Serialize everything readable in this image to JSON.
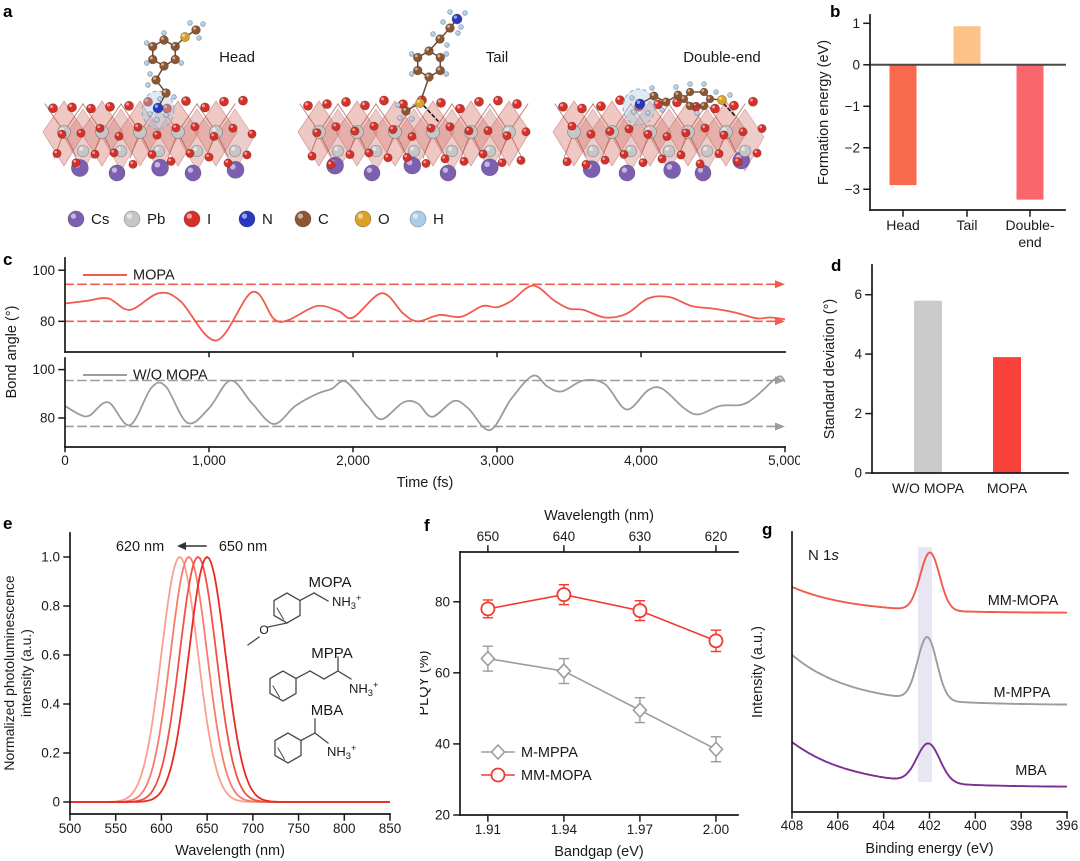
{
  "panels": {
    "a": {
      "letter": "a",
      "structures": [
        {
          "title": "Head"
        },
        {
          "title": "Tail"
        },
        {
          "title": "Double-end"
        }
      ],
      "atom_legend": [
        {
          "symbol": "Cs",
          "color": "#7d5fb2"
        },
        {
          "symbol": "Pb",
          "color": "#c6c6c6"
        },
        {
          "symbol": "I",
          "color": "#d63028"
        },
        {
          "symbol": "N",
          "color": "#2438c0"
        },
        {
          "symbol": "C",
          "color": "#8a5731"
        },
        {
          "symbol": "O",
          "color": "#d9a125"
        },
        {
          "symbol": "H",
          "color": "#a9cde6"
        }
      ]
    },
    "b": {
      "letter": "b"
    },
    "c": {
      "letter": "c"
    },
    "d": {
      "letter": "d"
    },
    "e": {
      "letter": "e"
    },
    "f": {
      "letter": "f"
    },
    "g": {
      "letter": "g"
    }
  },
  "chart_data": [
    {
      "panel": "b",
      "type": "bar",
      "title": "",
      "categories": [
        "Head",
        "Tail",
        "Double-end"
      ],
      "category_display": [
        [
          "Head"
        ],
        [
          "Tail"
        ],
        [
          "Double-",
          "end"
        ]
      ],
      "values": [
        -2.9,
        0.93,
        -3.25
      ],
      "bar_colors": [
        "#f9694c",
        "#fcc288",
        "#f9676c"
      ],
      "ylabel": "Formation energy (eV)",
      "ylim": [
        -3.5,
        1.2
      ],
      "yticks": [
        1,
        0,
        -1,
        -2,
        -3
      ],
      "ytick_labels": [
        "1",
        "0",
        "−1",
        "−2",
        "−3"
      ],
      "zero_line": true,
      "grid": false
    },
    {
      "panel": "c",
      "type": "line",
      "xlabel": "Time (fs)",
      "ylabel": "Bond angle (°)",
      "xlim": [
        0,
        5000
      ],
      "xticks": [
        0,
        1000,
        2000,
        3000,
        4000,
        5000
      ],
      "xtick_labels": [
        "0",
        "1,000",
        "2,000",
        "3,000",
        "4,000",
        "5,000"
      ],
      "subplots": [
        {
          "legend": "MOPA",
          "color": "#f15b4d",
          "ylim": [
            68,
            104.8
          ],
          "yticks": [
            100,
            80
          ],
          "dashed_guides": [
            94.5,
            80
          ],
          "x": [
            0,
            150,
            300,
            450,
            650,
            800,
            1050,
            1300,
            1450,
            1550,
            1750,
            1900,
            2000,
            2200,
            2350,
            2450,
            2600,
            2750,
            2900,
            3000,
            3100,
            3250,
            3400,
            3500,
            3600,
            3750,
            3900,
            4050,
            4200,
            4350,
            4500,
            4650,
            4800,
            4900,
            5000
          ],
          "y": [
            87,
            88,
            89,
            84.5,
            91,
            88,
            72.5,
            91.5,
            81,
            80.5,
            86,
            84,
            81.5,
            91,
            83,
            80,
            82.5,
            81.8,
            86,
            85.5,
            88,
            94,
            88,
            85,
            84.5,
            81.5,
            83,
            89,
            89.5,
            86,
            85,
            83.5,
            81.2,
            81.5,
            80.8
          ]
        },
        {
          "legend": "W/O MOPA",
          "color": "#9c9c9c",
          "ylim": [
            68,
            104.8
          ],
          "yticks": [
            100,
            80
          ],
          "dashed_guides": [
            95.5,
            76.5
          ],
          "x": [
            0,
            100,
            170,
            300,
            450,
            600,
            700,
            850,
            1000,
            1150,
            1300,
            1450,
            1600,
            1750,
            1850,
            1950,
            2100,
            2200,
            2350,
            2450,
            2550,
            2700,
            2800,
            2950,
            3100,
            3250,
            3350,
            3450,
            3600,
            3750,
            3900,
            4050,
            4150,
            4300,
            4400,
            4550,
            4700,
            4800,
            4950,
            5000
          ],
          "y": [
            85,
            81.5,
            81,
            86.5,
            77,
            92.5,
            93,
            78,
            84,
            95.5,
            86,
            77.5,
            85,
            90,
            92,
            95,
            85,
            79.5,
            86.5,
            86,
            80.5,
            87,
            84,
            75,
            88,
            97.5,
            93,
            91,
            95.5,
            94,
            83.5,
            91.5,
            92,
            84,
            81.5,
            85,
            85.5,
            89,
            97,
            95
          ]
        }
      ]
    },
    {
      "panel": "d",
      "type": "bar",
      "categories": [
        "W/O MOPA",
        "MOPA"
      ],
      "values": [
        5.8,
        3.9
      ],
      "bar_colors": [
        "#cbcbcb",
        "#f8423a"
      ],
      "ylabel": "Standard deviation (°)",
      "ylim": [
        0,
        7
      ],
      "yticks": [
        0,
        2,
        4,
        6
      ],
      "grid": false
    },
    {
      "panel": "e",
      "type": "line",
      "xlabel": "Wavelength (nm)",
      "ylabel": "Normalized photoluminescence intensity (a.u.)",
      "ylabel_lines": [
        "Normalized photoluminescence",
        "intensity (a.u.)"
      ],
      "xlim": [
        500,
        850
      ],
      "xticks": [
        500,
        550,
        600,
        650,
        700,
        750,
        800,
        850
      ],
      "ylim": [
        -0.05,
        1.1
      ],
      "yticks": [
        1.0,
        0.8,
        0.6,
        0.4,
        0.2,
        0
      ],
      "ytick_labels": [
        "1.0",
        "0.8",
        "0.6",
        "0.4",
        "0.2",
        "0"
      ],
      "annotation": {
        "left": "620 nm",
        "right": "650 nm",
        "arrow": "left"
      },
      "series": [
        {
          "peak_nm": 620,
          "sigma_nm": 20,
          "height": 1.0,
          "color": "#f9a18e"
        },
        {
          "peak_nm": 630,
          "sigma_nm": 20,
          "height": 1.0,
          "color": "#f67d6a"
        },
        {
          "peak_nm": 640,
          "sigma_nm": 20,
          "height": 1.0,
          "color": "#f05244"
        },
        {
          "peak_nm": 650,
          "sigma_nm": 20,
          "height": 1.0,
          "color": "#e92b22"
        }
      ],
      "molecules": [
        {
          "name": "MOPA",
          "ammonium": {
            "base": "NH",
            "sub": "3",
            "sup": "+"
          },
          "methoxy_label": "O"
        },
        {
          "name": "MPPA",
          "ammonium": {
            "base": "NH",
            "sub": "3",
            "sup": "+"
          }
        },
        {
          "name": "MBA",
          "ammonium": {
            "base": "NH",
            "sub": "3",
            "sup": "+"
          }
        }
      ]
    },
    {
      "panel": "f",
      "type": "scatter",
      "top_axis": {
        "label": "Wavelength (nm)",
        "tick_labels": [
          "650",
          "640",
          "630",
          "620"
        ]
      },
      "xlabel": "Bandgap (eV)",
      "ylabel": "PLQY (%)",
      "x": [
        1.91,
        1.94,
        1.97,
        2.0
      ],
      "xtick_labels": [
        "1.91",
        "1.94",
        "1.97",
        "2.00"
      ],
      "ylim": [
        20,
        94
      ],
      "yticks": [
        20,
        40,
        60,
        80
      ],
      "series": [
        {
          "name": "M-MPPA",
          "marker": "diamond",
          "color": "#9c9c9c",
          "values": [
            64,
            60.5,
            49.5,
            38.5
          ],
          "errors": [
            3.5,
            3.5,
            3.5,
            3.5
          ]
        },
        {
          "name": "MM-MOPA",
          "marker": "circle",
          "color": "#f23a30",
          "values": [
            78,
            82,
            77.5,
            69
          ],
          "errors": [
            2.5,
            2.8,
            2.8,
            3
          ]
        }
      ],
      "legend_position": "bottom-left"
    },
    {
      "panel": "g",
      "type": "line",
      "annotation": {
        "base": "N 1",
        "italic": "s"
      },
      "xlabel": "Binding energy (eV)",
      "ylabel": "Intensity (a.u.)",
      "xlim": [
        408,
        396
      ],
      "xticks": [
        408,
        406,
        404,
        402,
        400,
        398,
        396
      ],
      "highlight_band": {
        "x_from": 402.5,
        "x_to": 401.89,
        "color": "#e9e6f3"
      },
      "series": [
        {
          "name": "MM-MOPA",
          "color": "#f25a4b",
          "baseline": 0.711,
          "left_tail": 0.093,
          "peak_center": 401.98,
          "peak_height": 0.207,
          "peak_sigma": 0.42
        },
        {
          "name": "M-MPPA",
          "color": "#9c9c9c",
          "baseline": 0.382,
          "left_tail": 0.179,
          "peak_center": 402.1,
          "peak_height": 0.225,
          "peak_sigma": 0.42
        },
        {
          "name": "MBA",
          "color": "#7b2f92",
          "baseline": 0.089,
          "left_tail": 0.161,
          "peak_center": 402.05,
          "peak_height": 0.14,
          "peak_sigma": 0.5
        }
      ]
    }
  ]
}
